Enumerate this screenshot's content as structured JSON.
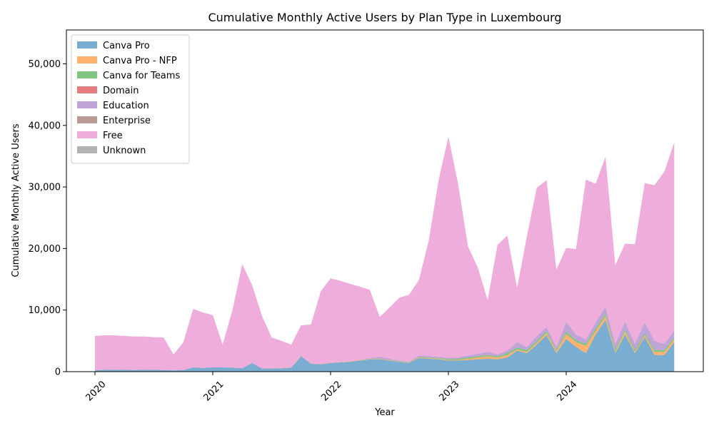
{
  "chart_data": {
    "type": "area",
    "stacked": true,
    "title": "Cumulative Monthly Active Users by Plan Type in Luxembourg",
    "xlabel": "Year",
    "ylabel": "Cumulative Monthly Active Users",
    "x_start": "2020-01",
    "x_ticks": [
      "2020",
      "2021",
      "2022",
      "2023",
      "2024"
    ],
    "y_ticks": [
      "0",
      "10,000",
      "20,000",
      "30,000",
      "40,000",
      "50,000"
    ],
    "ylim": [
      0,
      55500
    ],
    "legend_position": "upper-left",
    "grid": false,
    "series": [
      {
        "name": "Canva Pro",
        "color": "#1f77b4",
        "values": [
          200,
          300,
          300,
          300,
          250,
          300,
          300,
          250,
          200,
          250,
          700,
          600,
          700,
          700,
          650,
          550,
          1400,
          500,
          500,
          550,
          650,
          2500,
          1300,
          1200,
          1400,
          1500,
          1600,
          1800,
          2000,
          2000,
          1800,
          1600,
          1400,
          2200,
          2100,
          2000,
          1800,
          1800,
          1900,
          2000,
          2100,
          2000,
          2300,
          3400,
          3000,
          4400,
          5900,
          3000,
          5300,
          4000,
          3000,
          6000,
          8400,
          3000,
          6000,
          3000,
          5600,
          2700,
          2700,
          4800
        ]
      },
      {
        "name": "Canva Pro - NFP",
        "color": "#ff7f0e",
        "values": [
          0,
          0,
          0,
          0,
          0,
          0,
          0,
          0,
          0,
          0,
          0,
          0,
          0,
          0,
          0,
          0,
          0,
          0,
          50,
          50,
          50,
          50,
          50,
          50,
          50,
          50,
          50,
          50,
          50,
          50,
          50,
          50,
          50,
          100,
          100,
          100,
          100,
          100,
          200,
          300,
          400,
          300,
          400,
          200,
          200,
          300,
          400,
          300,
          800,
          800,
          1200,
          600,
          600,
          200,
          500,
          200,
          300,
          500,
          500,
          500
        ]
      },
      {
        "name": "Canva for Teams",
        "color": "#2ca02c",
        "values": [
          0,
          0,
          0,
          0,
          0,
          0,
          0,
          0,
          0,
          0,
          0,
          0,
          0,
          0,
          0,
          0,
          0,
          0,
          0,
          0,
          0,
          0,
          0,
          0,
          0,
          0,
          0,
          50,
          50,
          50,
          50,
          50,
          50,
          100,
          100,
          100,
          150,
          200,
          200,
          200,
          200,
          200,
          300,
          300,
          300,
          300,
          300,
          200,
          400,
          300,
          300,
          400,
          400,
          300,
          300,
          300,
          300,
          300,
          300,
          300
        ]
      },
      {
        "name": "Domain",
        "color": "#d62728",
        "values": [
          0,
          0,
          0,
          0,
          0,
          0,
          0,
          0,
          0,
          0,
          0,
          0,
          0,
          0,
          0,
          0,
          0,
          0,
          0,
          0,
          0,
          0,
          0,
          0,
          0,
          0,
          0,
          0,
          0,
          0,
          0,
          0,
          0,
          0,
          0,
          0,
          0,
          0,
          0,
          0,
          0,
          0,
          0,
          0,
          0,
          0,
          0,
          0,
          0,
          0,
          0,
          0,
          0,
          0,
          0,
          0,
          0,
          0,
          0,
          0
        ]
      },
      {
        "name": "Education",
        "color": "#9467bd",
        "values": [
          0,
          0,
          0,
          0,
          0,
          0,
          0,
          0,
          0,
          0,
          0,
          0,
          0,
          0,
          0,
          0,
          0,
          0,
          0,
          0,
          0,
          0,
          0,
          0,
          0,
          0,
          0,
          0,
          100,
          300,
          200,
          100,
          100,
          200,
          200,
          200,
          200,
          200,
          300,
          400,
          500,
          300,
          400,
          900,
          500,
          800,
          600,
          500,
          1600,
          900,
          700,
          1000,
          1100,
          1000,
          1300,
          1000,
          1800,
          1500,
          1000,
          1000
        ]
      },
      {
        "name": "Enterprise",
        "color": "#8c564b",
        "values": [
          0,
          0,
          0,
          0,
          0,
          0,
          0,
          0,
          0,
          0,
          0,
          0,
          0,
          0,
          0,
          0,
          0,
          0,
          0,
          0,
          0,
          0,
          0,
          0,
          0,
          0,
          0,
          0,
          0,
          0,
          0,
          0,
          0,
          0,
          0,
          0,
          0,
          0,
          0,
          0,
          0,
          0,
          0,
          0,
          0,
          0,
          0,
          0,
          0,
          0,
          0,
          0,
          0,
          0,
          0,
          0,
          0,
          0,
          0,
          0
        ]
      },
      {
        "name": "Free",
        "color": "#e377c2",
        "values": [
          5600,
          5600,
          5600,
          5500,
          5450,
          5400,
          5300,
          5300,
          2600,
          4500,
          9500,
          9000,
          8500,
          3700,
          9300,
          16900,
          12700,
          8600,
          5000,
          4400,
          3700,
          5000,
          6300,
          11800,
          13700,
          13200,
          12600,
          11900,
          11100,
          6500,
          8300,
          10200,
          10900,
          12300,
          18800,
          28700,
          35900,
          28100,
          17700,
          14000,
          8400,
          17800,
          18700,
          8800,
          18000,
          24100,
          23900,
          12600,
          12000,
          13900,
          26000,
          22500,
          24400,
          12800,
          12700,
          16200,
          22600,
          25300,
          28000,
          30600
        ]
      },
      {
        "name": "Unknown",
        "color": "#7f7f7f",
        "values": [
          0,
          0,
          0,
          0,
          0,
          0,
          0,
          0,
          0,
          0,
          0,
          0,
          0,
          0,
          0,
          0,
          0,
          0,
          0,
          0,
          0,
          0,
          0,
          0,
          0,
          0,
          0,
          0,
          0,
          0,
          0,
          0,
          0,
          0,
          0,
          0,
          0,
          0,
          0,
          0,
          0,
          0,
          0,
          0,
          0,
          0,
          0,
          0,
          0,
          0,
          0,
          0,
          0,
          0,
          0,
          0,
          0,
          0,
          0,
          0
        ]
      }
    ]
  }
}
